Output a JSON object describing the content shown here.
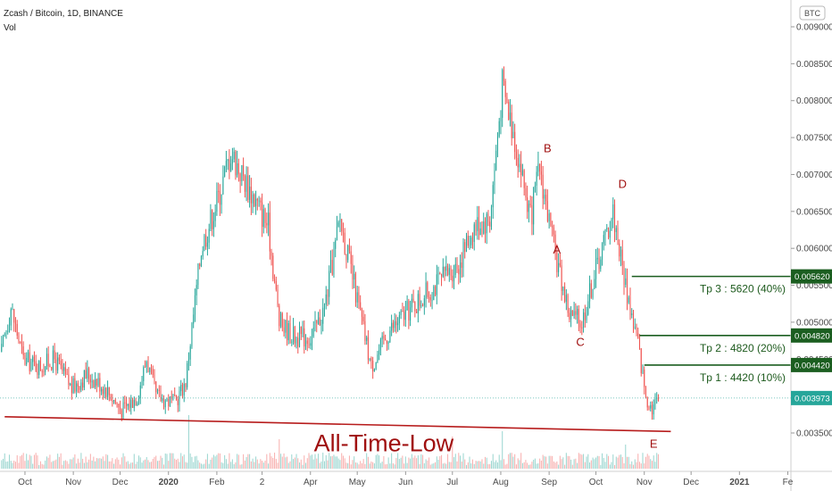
{
  "header": {
    "title": "Zcash / Bitcoin, 1D, BINANCE",
    "indicator": "Vol",
    "currency_badge": "BTC"
  },
  "colors": {
    "up": "#26a69a",
    "down": "#ef5350",
    "target": "#1b5e20",
    "annotation": "#a01010",
    "last_price": "#26a69a"
  },
  "chart_data": {
    "type": "candlestick",
    "symbol": "Zcash / Bitcoin",
    "interval": "1D",
    "exchange": "BINANCE",
    "y_axis": {
      "ticks": [
        "0.009000",
        "0.008500",
        "0.008000",
        "0.007500",
        "0.007000",
        "0.006500",
        "0.006000",
        "0.005500",
        "0.005000",
        "0.004500",
        "0.003500"
      ],
      "tick_values": [
        0.009,
        0.0085,
        0.008,
        0.0075,
        0.007,
        0.0065,
        0.006,
        0.0055,
        0.005,
        0.0045,
        0.0035
      ],
      "ylim": [
        0.00305,
        0.00935
      ]
    },
    "x_axis": {
      "ticks": [
        "Oct",
        "Nov",
        "Dec",
        "2020",
        "Feb",
        "2",
        "Apr",
        "May",
        "Jun",
        "Jul",
        "Aug",
        "Sep",
        "Oct",
        "Nov",
        "Dec",
        "2021",
        "Fe"
      ],
      "dates": [
        "2019-10-01",
        "2019-11-01",
        "2019-12-01",
        "2020-01-01",
        "2020-02-01",
        "2020-03-01",
        "2020-04-01",
        "2020-05-01",
        "2020-06-01",
        "2020-07-01",
        "2020-08-01",
        "2020-09-01",
        "2020-10-01",
        "2020-11-01",
        "2020-12-01",
        "2021-01-01",
        "2021-02-01"
      ],
      "range": [
        "2019-09-15",
        "2021-02-03"
      ]
    },
    "price_path": [
      {
        "date": "2019-09-16",
        "close": 0.0046
      },
      {
        "date": "2019-09-22",
        "close": 0.0052
      },
      {
        "date": "2019-09-30",
        "close": 0.0045
      },
      {
        "date": "2019-10-10",
        "close": 0.0044
      },
      {
        "date": "2019-10-20",
        "close": 0.0045
      },
      {
        "date": "2019-10-31",
        "close": 0.0041
      },
      {
        "date": "2019-11-10",
        "close": 0.0043
      },
      {
        "date": "2019-11-22",
        "close": 0.0041
      },
      {
        "date": "2019-12-02",
        "close": 0.0038
      },
      {
        "date": "2019-12-12",
        "close": 0.004
      },
      {
        "date": "2019-12-18",
        "close": 0.0045
      },
      {
        "date": "2019-12-24",
        "close": 0.004
      },
      {
        "date": "2020-01-05",
        "close": 0.0039
      },
      {
        "date": "2020-01-12",
        "close": 0.0042
      },
      {
        "date": "2020-01-22",
        "close": 0.006
      },
      {
        "date": "2020-02-02",
        "close": 0.0067
      },
      {
        "date": "2020-02-10",
        "close": 0.0073
      },
      {
        "date": "2020-02-22",
        "close": 0.0068
      },
      {
        "date": "2020-03-05",
        "close": 0.0063
      },
      {
        "date": "2020-03-12",
        "close": 0.005
      },
      {
        "date": "2020-03-22",
        "close": 0.0048
      },
      {
        "date": "2020-04-02",
        "close": 0.0048
      },
      {
        "date": "2020-04-10",
        "close": 0.0052
      },
      {
        "date": "2020-04-20",
        "close": 0.0064
      },
      {
        "date": "2020-04-30",
        "close": 0.0054
      },
      {
        "date": "2020-05-10",
        "close": 0.0044
      },
      {
        "date": "2020-05-22",
        "close": 0.0049
      },
      {
        "date": "2020-06-05",
        "close": 0.0052
      },
      {
        "date": "2020-06-20",
        "close": 0.0055
      },
      {
        "date": "2020-07-05",
        "close": 0.0058
      },
      {
        "date": "2020-07-15",
        "close": 0.0063
      },
      {
        "date": "2020-07-25",
        "close": 0.0064
      },
      {
        "date": "2020-08-02",
        "close": 0.0082
      },
      {
        "date": "2020-08-10",
        "close": 0.0075
      },
      {
        "date": "2020-08-20",
        "close": 0.0064
      },
      {
        "date": "2020-08-26",
        "close": 0.0071
      },
      {
        "date": "2020-09-03",
        "close": 0.0061
      },
      {
        "date": "2020-09-14",
        "close": 0.0051
      },
      {
        "date": "2020-09-22",
        "close": 0.005
      },
      {
        "date": "2020-10-02",
        "close": 0.0058
      },
      {
        "date": "2020-10-12",
        "close": 0.0065
      },
      {
        "date": "2020-10-20",
        "close": 0.0055
      },
      {
        "date": "2020-10-28",
        "close": 0.0047
      },
      {
        "date": "2020-11-02",
        "close": 0.004
      },
      {
        "date": "2020-11-06",
        "close": 0.00385
      },
      {
        "date": "2020-11-10",
        "close": 0.00397
      }
    ],
    "volume_spikes": [
      {
        "date": "2020-01-14",
        "level": 1.0
      },
      {
        "date": "2020-03-12",
        "level": 0.55
      },
      {
        "date": "2020-07-01",
        "level": 0.6
      },
      {
        "date": "2020-08-02",
        "level": 0.7
      },
      {
        "date": "2020-10-20",
        "level": 0.45
      }
    ],
    "support_line": {
      "start": {
        "date": "2019-09-18",
        "value": 0.00372
      },
      "end": {
        "date": "2020-11-18",
        "value": 0.00352
      }
    },
    "targets": [
      {
        "label": "Tp 3 : 5620 (40%)",
        "value": 0.00562,
        "badge": "0.005620",
        "start": "2020-10-24"
      },
      {
        "label": "Tp 2 : 4820 (20%)",
        "value": 0.00482,
        "badge": "0.004820",
        "start": "2020-10-29"
      },
      {
        "label": "Tp 1 : 4420 (10%)",
        "value": 0.00442,
        "badge": "0.004420",
        "start": "2020-11-01"
      }
    ],
    "last_price": {
      "value": 0.003973,
      "badge": "0.003973"
    },
    "wave_labels": [
      {
        "text": "A",
        "date": "2020-09-06",
        "value": 0.00593
      },
      {
        "text": "B",
        "date": "2020-08-31",
        "value": 0.0073
      },
      {
        "text": "C",
        "date": "2020-09-21",
        "value": 0.00468
      },
      {
        "text": "D",
        "date": "2020-10-18",
        "value": 0.00682
      },
      {
        "text": "E",
        "date": "2020-11-07",
        "value": 0.0033
      }
    ],
    "annotation_text": {
      "text": "All-Time-Low",
      "date": "2020-05-18",
      "value": 0.0034
    }
  }
}
